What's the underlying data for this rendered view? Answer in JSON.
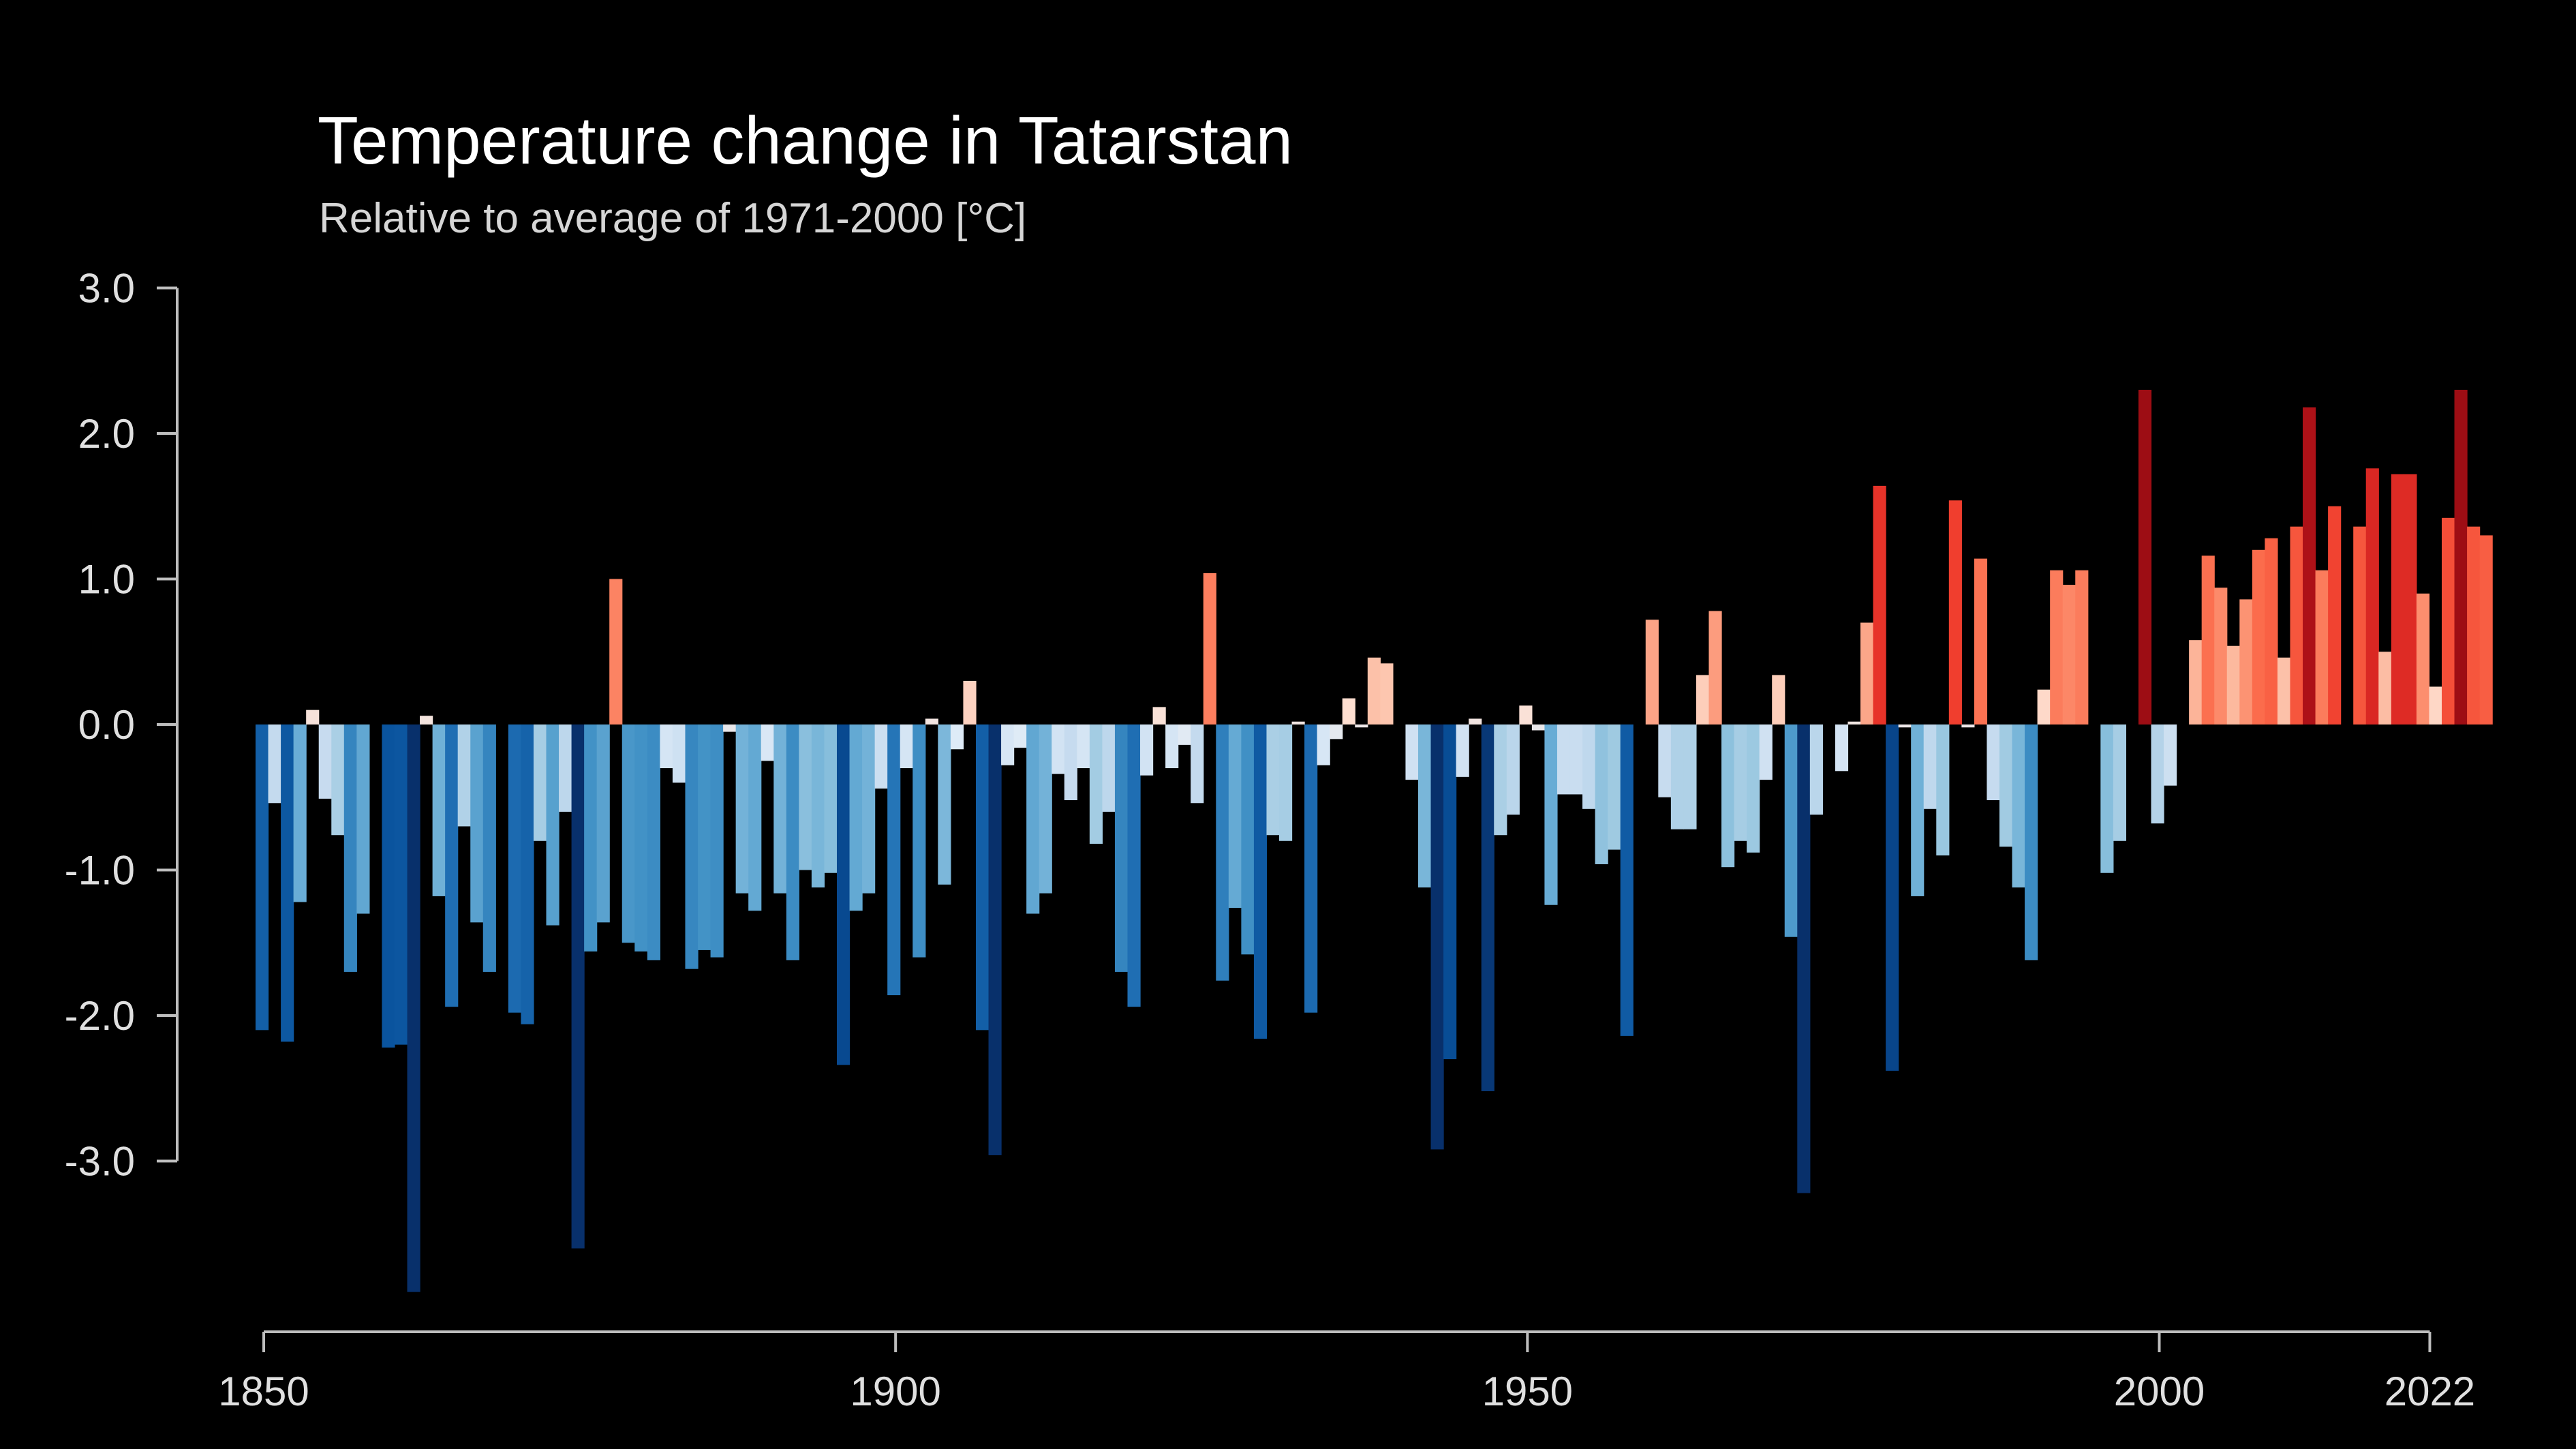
{
  "chart_data": {
    "type": "bar",
    "title": "Temperature change in Tatarstan",
    "subtitle": "Relative to average of 1971-2000  [°C]",
    "xlabel": "",
    "ylabel": "",
    "first_year": 1850,
    "last_year": 2022,
    "xlim": [
      1850,
      2022
    ],
    "ylim": [
      -3.9,
      3.0
    ],
    "y_ticks": [
      {
        "value": 3.0,
        "label": "3.0"
      },
      {
        "value": 2.0,
        "label": "2.0"
      },
      {
        "value": 1.0,
        "label": "1.0"
      },
      {
        "value": 0.0,
        "label": "0.0"
      },
      {
        "value": -1.0,
        "label": "-1.0"
      },
      {
        "value": -2.0,
        "label": "-2.0"
      },
      {
        "value": -3.0,
        "label": "-3.0"
      }
    ],
    "x_ticks": [
      {
        "value": 1850,
        "label": "1850"
      },
      {
        "value": 1900,
        "label": "1900"
      },
      {
        "value": 1950,
        "label": "1950"
      },
      {
        "value": 2000,
        "label": "2000"
      },
      {
        "value": 2022,
        "label": "2022"
      }
    ],
    "values": [
      -2.1,
      -0.54,
      -2.18,
      -1.22,
      0.1,
      -0.51,
      -0.76,
      -1.7,
      -1.3,
      0.0,
      -2.22,
      -2.2,
      -3.9,
      0.06,
      -1.18,
      -1.94,
      -0.7,
      -1.36,
      -1.7,
      0.0,
      -1.98,
      -2.06,
      -0.8,
      -1.38,
      -0.6,
      -3.6,
      -1.56,
      -1.36,
      1.0,
      -1.5,
      -1.56,
      -1.62,
      -0.3,
      -0.4,
      -1.68,
      -1.55,
      -1.6,
      -0.05,
      -1.16,
      -1.28,
      -0.25,
      -1.16,
      -1.62,
      -1.0,
      -1.12,
      -1.02,
      -2.34,
      -1.28,
      -1.16,
      -0.44,
      -1.86,
      -0.3,
      -1.6,
      0.04,
      -1.1,
      -0.17,
      0.3,
      -2.1,
      -2.96,
      -0.28,
      -0.16,
      -1.3,
      -1.16,
      -0.34,
      -0.52,
      -0.3,
      -0.82,
      -0.6,
      -1.7,
      -1.94,
      -0.35,
      0.12,
      -0.3,
      -0.14,
      -0.54,
      1.04,
      -1.76,
      -1.26,
      -1.58,
      -2.16,
      -0.76,
      -0.8,
      0.02,
      -1.98,
      -0.28,
      -0.1,
      0.18,
      -0.02,
      0.46,
      0.42,
      0.0,
      -0.38,
      -1.12,
      -2.92,
      -2.3,
      -0.36,
      0.04,
      -2.52,
      -0.76,
      -0.62,
      0.13,
      -0.04,
      -1.24,
      -0.48,
      -0.48,
      -0.58,
      -0.96,
      -0.86,
      -2.14,
      0.0,
      0.72,
      -0.5,
      -0.72,
      -0.72,
      0.34,
      0.78,
      -0.98,
      -0.8,
      -0.88,
      -0.38,
      0.34,
      -1.46,
      -3.22,
      -0.62,
      0.0,
      -0.32,
      0.02,
      0.7,
      1.64,
      -2.38,
      -0.02,
      -1.18,
      -0.58,
      -0.9,
      1.54,
      -0.02,
      1.14,
      -0.52,
      -0.84,
      -1.12,
      -1.62,
      0.24,
      1.06,
      0.96,
      1.06,
      0.0,
      -1.02,
      -0.8,
      0.0,
      2.3,
      -0.68,
      -0.42,
      0.0,
      0.58,
      1.16,
      0.94,
      0.54,
      0.86,
      1.2,
      1.28,
      0.46,
      1.36,
      2.18,
      1.06,
      1.5,
      0.0,
      1.36,
      1.76,
      0.5,
      1.72,
      1.72,
      0.9,
      0.26,
      1.42,
      2.3,
      1.36,
      1.3
    ],
    "color_scale": {
      "min": -2.6,
      "max": 2.6,
      "stops": [
        "#08306b",
        "#08519c",
        "#2171b5",
        "#4292c6",
        "#6baed6",
        "#9ecae1",
        "#c6dbef",
        "#deebf7",
        "#fee0d2",
        "#fcbba1",
        "#fc9272",
        "#fb6a4a",
        "#ef3b2c",
        "#cb181d",
        "#a50f15",
        "#67000d"
      ]
    },
    "axis_color": "#bdbdbd",
    "tick_label_color": "#e0e0e0",
    "background": "#000000"
  }
}
